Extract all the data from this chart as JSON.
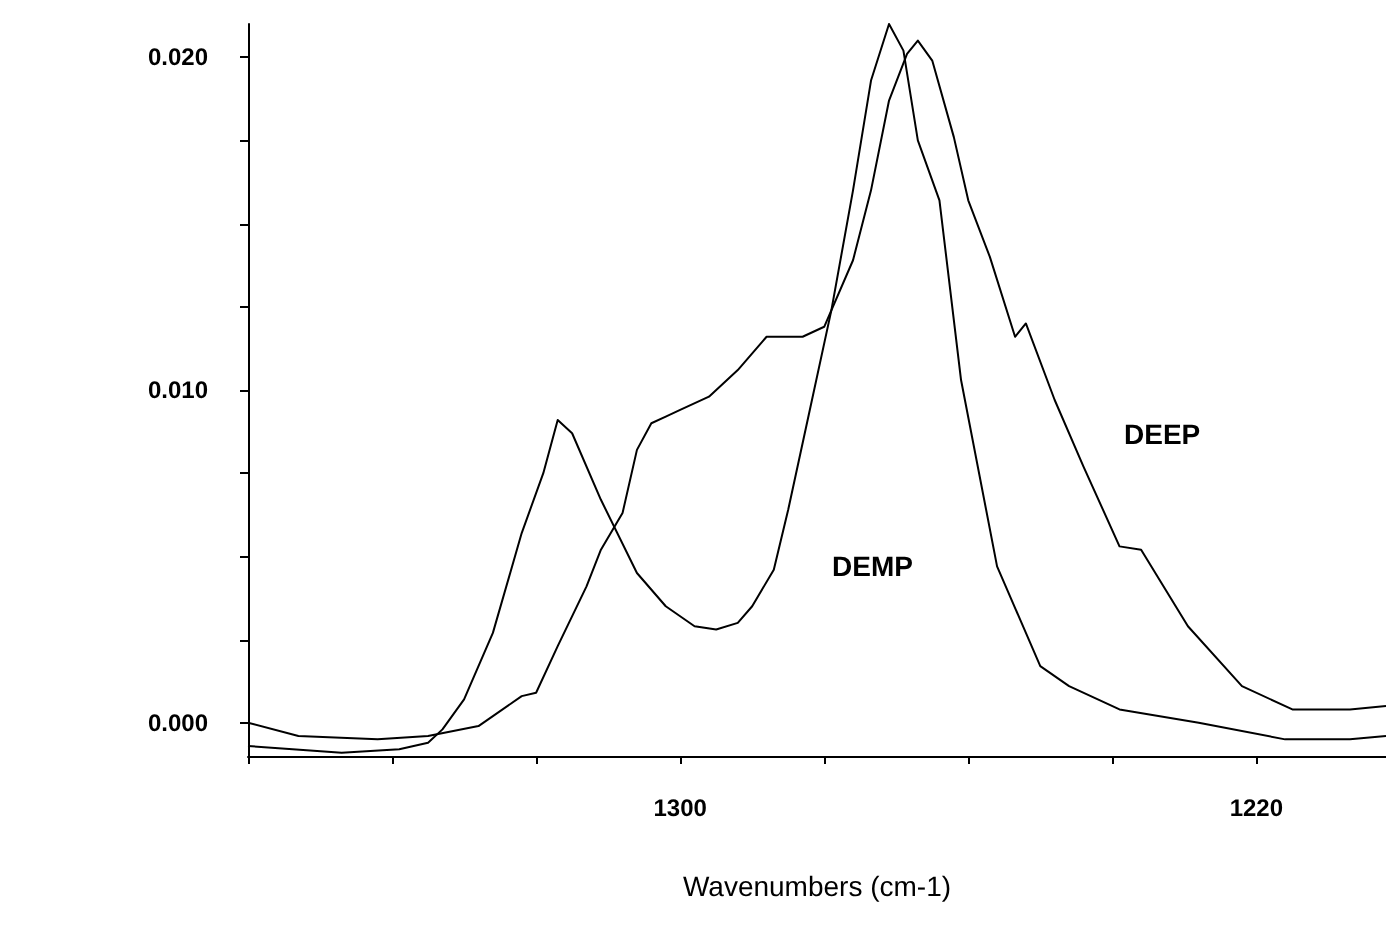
{
  "chart_data": {
    "type": "line",
    "xlabel": "Wavenumbers (cm-1)",
    "xlim": [
      1360,
      1202
    ],
    "xticks": [
      {
        "value": 1360,
        "label": null
      },
      {
        "value": 1340,
        "label": null
      },
      {
        "value": 1320,
        "label": null
      },
      1300,
      {
        "value": 1280,
        "label": null
      },
      {
        "value": 1260,
        "label": null
      },
      {
        "value": 1240,
        "label": null
      },
      1220
    ],
    "ylim": [
      -0.001,
      0.021
    ],
    "yticks": [
      {
        "value": 0,
        "label": "0.000"
      },
      {
        "value": 0.0025,
        "label": null
      },
      {
        "value": 0.005,
        "label": null
      },
      {
        "value": 0.0075,
        "label": null
      },
      {
        "value": 0.01,
        "label": "0.010"
      },
      {
        "value": 0.0125,
        "label": null
      },
      {
        "value": 0.015,
        "label": null
      },
      {
        "value": 0.0175,
        "label": null
      },
      {
        "value": 0.02,
        "label": "0.020"
      }
    ],
    "grid": false,
    "legend": false,
    "marker": "none",
    "line_style": "solid",
    "series": [
      {
        "name": "DEMP",
        "color": "#000000",
        "x": [
          1360,
          1347,
          1339,
          1335,
          1333,
          1330,
          1326,
          1322,
          1319,
          1317,
          1315,
          1311,
          1306,
          1302,
          1298,
          1295,
          1292,
          1290,
          1287,
          1285,
          1282,
          1279,
          1276,
          1273.5,
          1271,
          1269,
          1267,
          1264,
          1261,
          1256,
          1250,
          1246,
          1239,
          1228,
          1216,
          1207,
          1202
        ],
        "values": [
          -0.0007,
          -0.0009,
          -0.0008,
          -0.0006,
          -0.0002,
          0.0007,
          0.0027,
          0.0057,
          0.0075,
          0.0091,
          0.0087,
          0.0067,
          0.0045,
          0.0035,
          0.0029,
          0.0028,
          0.003,
          0.0035,
          0.0046,
          0.0064,
          0.0094,
          0.0124,
          0.016,
          0.0193,
          0.021,
          0.0202,
          0.0175,
          0.0157,
          0.0103,
          0.0047,
          0.0017,
          0.0011,
          0.0004,
          0.0,
          -0.0005,
          -0.0005,
          -0.0004
        ]
      },
      {
        "name": "DEEP",
        "color": "#000000",
        "x": [
          1360,
          1353,
          1342,
          1335,
          1328,
          1322,
          1320,
          1317,
          1313,
          1311,
          1308,
          1306,
          1304,
          1302,
          1300,
          1296,
          1292,
          1288,
          1283,
          1280,
          1276,
          1273.5,
          1271,
          1268.5,
          1267,
          1265,
          1262,
          1260,
          1257,
          1253.5,
          1252,
          1248,
          1244,
          1239,
          1236,
          1229.5,
          1222,
          1215,
          1207,
          1202
        ],
        "values": [
          0.0,
          -0.0004,
          -0.0005,
          -0.0004,
          -0.0001,
          0.0008,
          0.0009,
          0.0023,
          0.0041,
          0.0052,
          0.0063,
          0.0082,
          0.009,
          0.0092,
          0.0094,
          0.0098,
          0.0106,
          0.0116,
          0.0116,
          0.0119,
          0.0139,
          0.016,
          0.0187,
          0.0201,
          0.0205,
          0.0199,
          0.0176,
          0.0157,
          0.014,
          0.0116,
          0.012,
          0.0097,
          0.0077,
          0.0053,
          0.0052,
          0.0029,
          0.0011,
          0.0004,
          0.0004,
          0.0005
        ]
      }
    ]
  }
}
